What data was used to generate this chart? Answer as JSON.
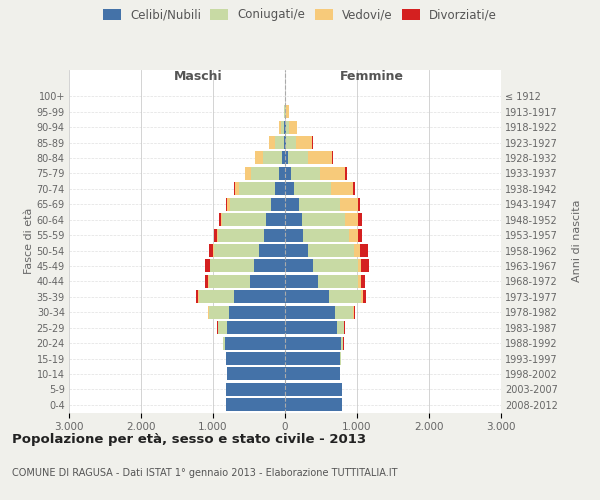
{
  "age_groups_bottom_to_top": [
    "0-4",
    "5-9",
    "10-14",
    "15-19",
    "20-24",
    "25-29",
    "30-34",
    "35-39",
    "40-44",
    "45-49",
    "50-54",
    "55-59",
    "60-64",
    "65-69",
    "70-74",
    "75-79",
    "80-84",
    "85-89",
    "90-94",
    "95-99",
    "100+"
  ],
  "birth_years_bottom_to_top": [
    "2008-2012",
    "2003-2007",
    "1998-2002",
    "1993-1997",
    "1988-1992",
    "1983-1987",
    "1978-1982",
    "1973-1977",
    "1968-1972",
    "1963-1967",
    "1958-1962",
    "1953-1957",
    "1948-1952",
    "1943-1947",
    "1938-1942",
    "1933-1937",
    "1928-1932",
    "1923-1927",
    "1918-1922",
    "1913-1917",
    "≤ 1912"
  ],
  "colors": {
    "celibe": "#4472a8",
    "coniugato": "#c8daa4",
    "vedovo": "#f7ca7a",
    "divorziato": "#d42020"
  },
  "male_celibe": [
    820,
    820,
    810,
    820,
    830,
    810,
    780,
    710,
    490,
    430,
    360,
    290,
    260,
    200,
    140,
    80,
    40,
    20,
    10,
    5,
    0
  ],
  "male_coniugato": [
    0,
    0,
    0,
    5,
    30,
    120,
    280,
    490,
    570,
    610,
    630,
    640,
    610,
    570,
    500,
    390,
    260,
    120,
    50,
    10,
    0
  ],
  "male_vedovo": [
    0,
    0,
    0,
    0,
    0,
    5,
    5,
    5,
    5,
    5,
    10,
    15,
    20,
    35,
    50,
    80,
    110,
    80,
    30,
    5,
    0
  ],
  "male_divorziato": [
    0,
    0,
    0,
    0,
    0,
    5,
    10,
    30,
    45,
    60,
    50,
    40,
    30,
    20,
    15,
    10,
    5,
    0,
    0,
    0,
    0
  ],
  "female_celibe": [
    790,
    790,
    770,
    770,
    780,
    720,
    690,
    610,
    460,
    390,
    320,
    250,
    230,
    190,
    130,
    80,
    40,
    20,
    10,
    5,
    0
  ],
  "female_coniugato": [
    0,
    0,
    0,
    5,
    30,
    100,
    260,
    450,
    560,
    620,
    640,
    640,
    610,
    570,
    510,
    400,
    280,
    130,
    50,
    10,
    0
  ],
  "female_vedovo": [
    0,
    0,
    0,
    0,
    0,
    5,
    10,
    20,
    30,
    50,
    80,
    120,
    180,
    250,
    310,
    360,
    330,
    230,
    110,
    35,
    5
  ],
  "female_divorziato": [
    0,
    0,
    0,
    0,
    5,
    5,
    15,
    40,
    55,
    100,
    110,
    60,
    50,
    30,
    20,
    15,
    10,
    5,
    0,
    0,
    0
  ],
  "title": "Popolazione per età, sesso e stato civile - 2013",
  "subtitle": "COMUNE DI RAGUSA - Dati ISTAT 1° gennaio 2013 - Elaborazione TUTTITALIA.IT",
  "xlabel_left": "Maschi",
  "xlabel_right": "Femmine",
  "ylabel_left": "Fasce di età",
  "ylabel_right": "Anni di nascita",
  "xlim": 3000,
  "legend_labels": [
    "Celibi/Nubili",
    "Coniugati/e",
    "Vedovi/e",
    "Divorziati/e"
  ],
  "background_color": "#f0f0eb",
  "plot_bg_color": "#ffffff",
  "grid_color": "#cccccc"
}
